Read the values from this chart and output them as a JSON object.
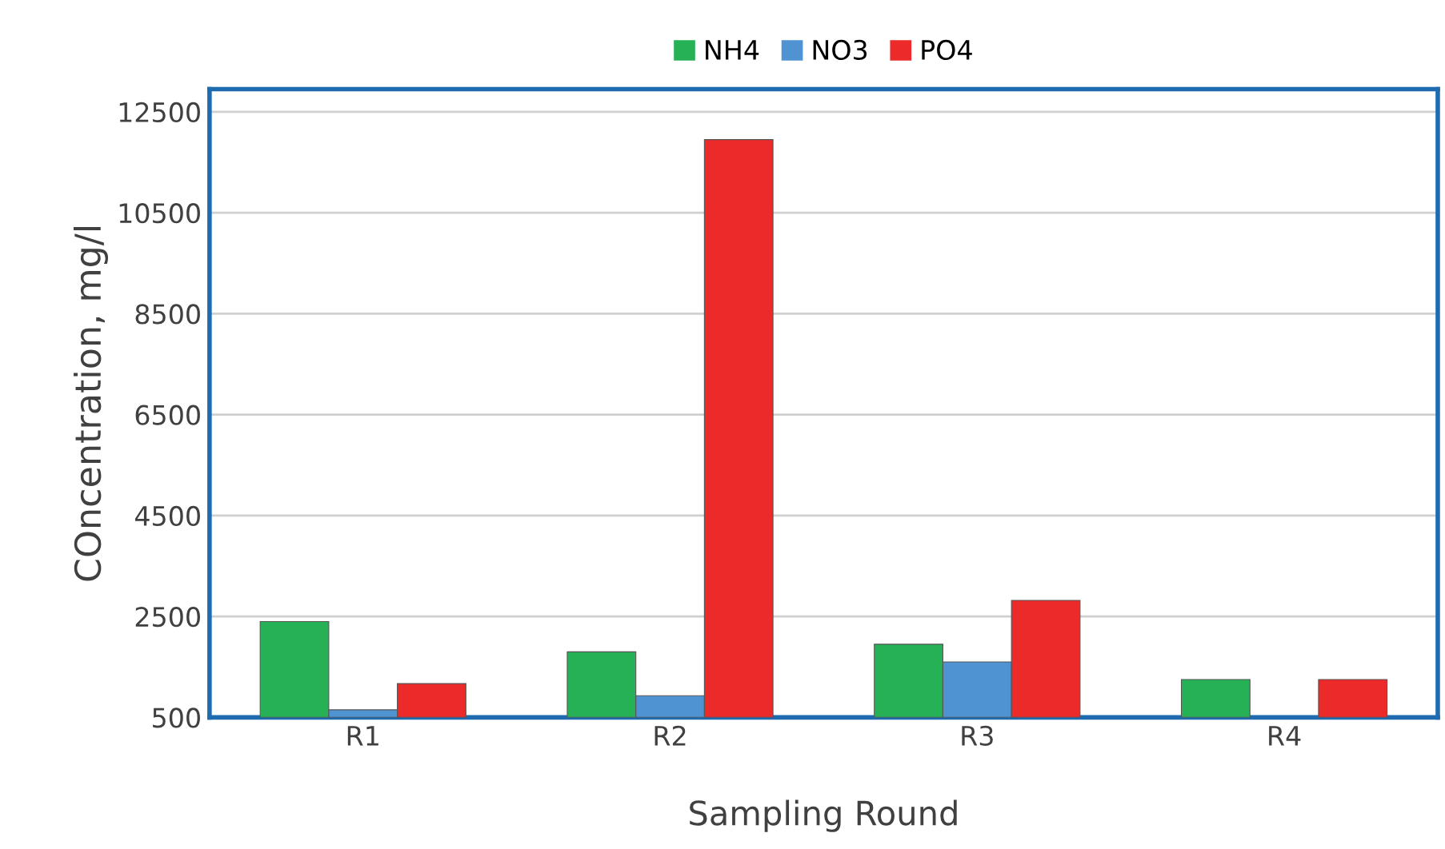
{
  "chart_data": {
    "type": "bar",
    "xlabel": "Sampling Round",
    "ylabel": "COncentration, mg/l",
    "categories": [
      "R1",
      "R2",
      "R3",
      "R4"
    ],
    "series": [
      {
        "name": "NH4",
        "color": "#27b157",
        "values": [
          2400,
          1800,
          1950,
          1250
        ]
      },
      {
        "name": "NO3",
        "color": "#4f93d2",
        "values": [
          650,
          930,
          1600,
          null
        ]
      },
      {
        "name": "PO4",
        "color": "#ed2a2a",
        "values": [
          1170,
          11950,
          2820,
          1250
        ]
      }
    ],
    "ylim": [
      500,
      12950
    ],
    "yticks": [
      500,
      2500,
      4500,
      6500,
      8500,
      10500,
      12500
    ],
    "grid": "y",
    "legend": "top"
  }
}
